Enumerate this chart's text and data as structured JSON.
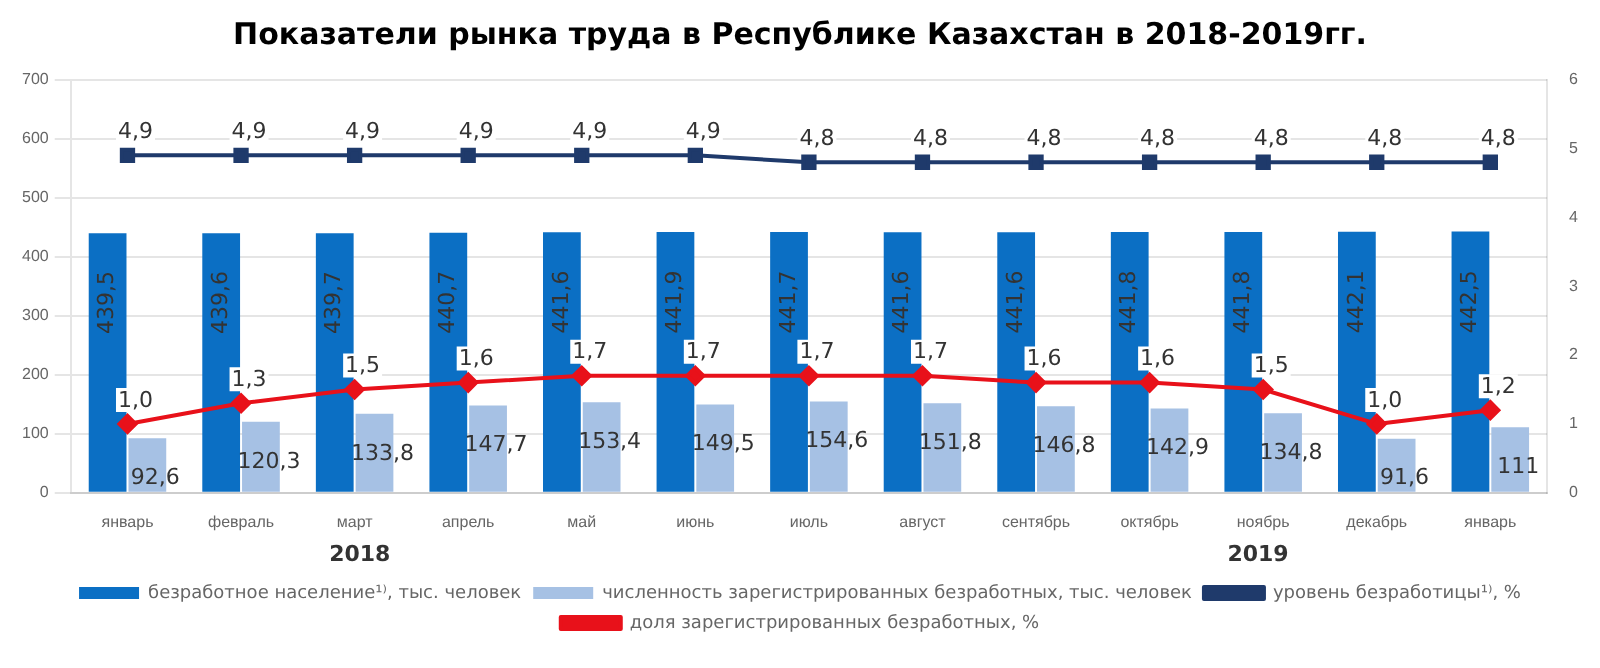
{
  "chart_data": {
    "type": "bar",
    "title": "Показатели рынка труда в Республике Казахстан в 2018-2019гг.",
    "categories": [
      "январь",
      "февраль",
      "март",
      "апрель",
      "май",
      "июнь",
      "июль",
      "август",
      "сентябрь",
      "октябрь",
      "ноябрь",
      "декабрь",
      "январь"
    ],
    "series": [
      {
        "name": "безработное население¹⁾, тыс. человек",
        "color": "#0b6fc4",
        "values": [
          439.5,
          439.6,
          439.7,
          440.7,
          441.6,
          441.9,
          441.7,
          441.6,
          441.6,
          441.8,
          441.8,
          442.1,
          442.5
        ],
        "value_labels": [
          "439,5",
          "439,6",
          "439,7",
          "440,7",
          "441,6",
          "441,9",
          "441,7",
          "441,6",
          "441,6",
          "441,8",
          "441,8",
          "442,1",
          "442,5"
        ]
      },
      {
        "name": "численность зарегистрированных безработных, тыс. человек",
        "color": "#a6c1e4",
        "values": [
          92.6,
          120.3,
          133.8,
          147.7,
          153.4,
          149.5,
          154.6,
          151.8,
          146.8,
          142.9,
          134.8,
          91.6,
          111
        ],
        "value_labels": [
          "92,6",
          "120,3",
          "133,8",
          "147,7",
          "153,4",
          "149,5",
          "154,6",
          "151,8",
          "146,8",
          "142,9",
          "134,8",
          "91,6",
          "111"
        ]
      },
      {
        "name": "уровень безработицы¹⁾, %",
        "type": "line",
        "axis": "y2",
        "marker": "square",
        "color": "#1f3a6b",
        "values": [
          4.9,
          4.9,
          4.9,
          4.9,
          4.9,
          4.9,
          4.8,
          4.8,
          4.8,
          4.8,
          4.8,
          4.8,
          4.8
        ],
        "value_labels": [
          "4,9",
          "4,9",
          "4,9",
          "4,9",
          "4,9",
          "4,9",
          "4,8",
          "4,8",
          "4,8",
          "4,8",
          "4,8",
          "4,8",
          "4,8"
        ]
      },
      {
        "name": "доля зарегистрированных безработных, %",
        "type": "line",
        "axis": "y2",
        "marker": "diamond",
        "color": "#e8111a",
        "values": [
          1.0,
          1.3,
          1.5,
          1.6,
          1.7,
          1.7,
          1.7,
          1.7,
          1.6,
          1.6,
          1.5,
          1.0,
          1.2
        ],
        "value_labels": [
          "1,0",
          "1,3",
          "1,5",
          "1,6",
          "1,7",
          "1,7",
          "1,7",
          "1,7",
          "1,6",
          "1,6",
          "1,5",
          "1,0",
          "1,2"
        ]
      }
    ],
    "ylim": [
      0,
      700
    ],
    "yticks": [
      0,
      100,
      200,
      300,
      400,
      500,
      600,
      700
    ],
    "y2lim": [
      0,
      6
    ],
    "y2ticks": [
      0,
      1,
      2,
      3,
      4,
      5,
      6
    ],
    "grid": "y",
    "legend": "bottom",
    "annotations": [
      "2018",
      "2019"
    ]
  }
}
